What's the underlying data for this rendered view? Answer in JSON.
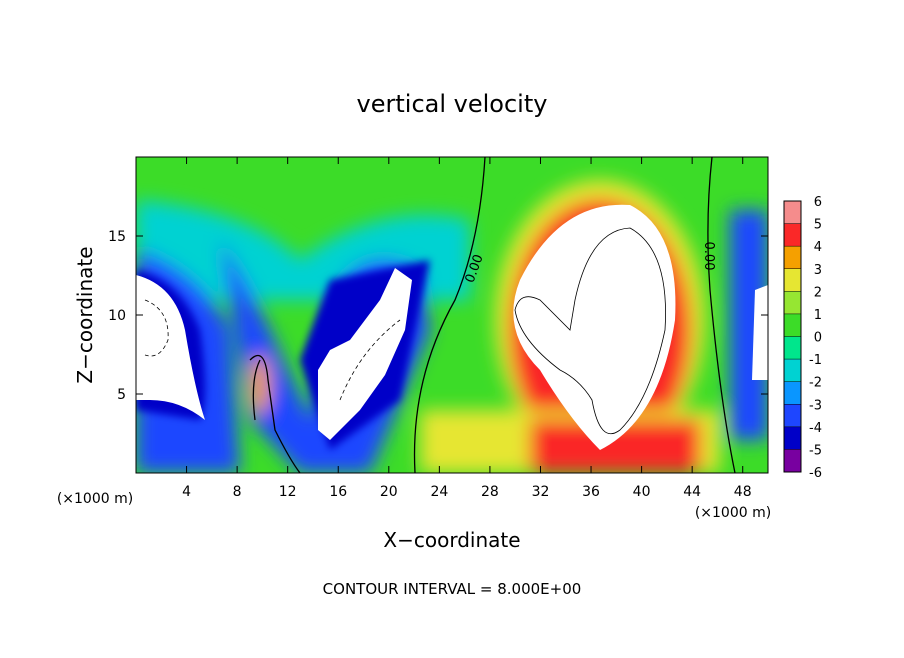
{
  "chart_data": {
    "type": "contour",
    "title": "vertical velocity",
    "x_label": "X−coordinate",
    "y_label": "Z−coordinate",
    "x_unit": "(×1000 m)",
    "y_unit": "(×1000 m)",
    "xlim": [
      0,
      50
    ],
    "xticks": [
      4,
      8,
      12,
      16,
      20,
      24,
      28,
      32,
      36,
      40,
      44,
      48
    ],
    "ylim": [
      0,
      20
    ],
    "yticks": [
      5,
      10,
      15
    ],
    "colorbar": {
      "ticks": [
        -6,
        -5,
        -4,
        -3,
        -2,
        -1,
        0,
        1,
        2,
        3,
        4,
        5,
        6
      ],
      "colors": [
        "#7800a0",
        "#0000c8",
        "#1e46ff",
        "#0a96ff",
        "#00d2d2",
        "#00e68c",
        "#3cdc28",
        "#96e632",
        "#e6e632",
        "#f5a000",
        "#fa2828",
        "#f58c8c"
      ]
    },
    "contour_labels": [
      "0.00",
      "0.00"
    ],
    "footnote": "CONTOUR INTERVAL = 8.000E+00"
  }
}
